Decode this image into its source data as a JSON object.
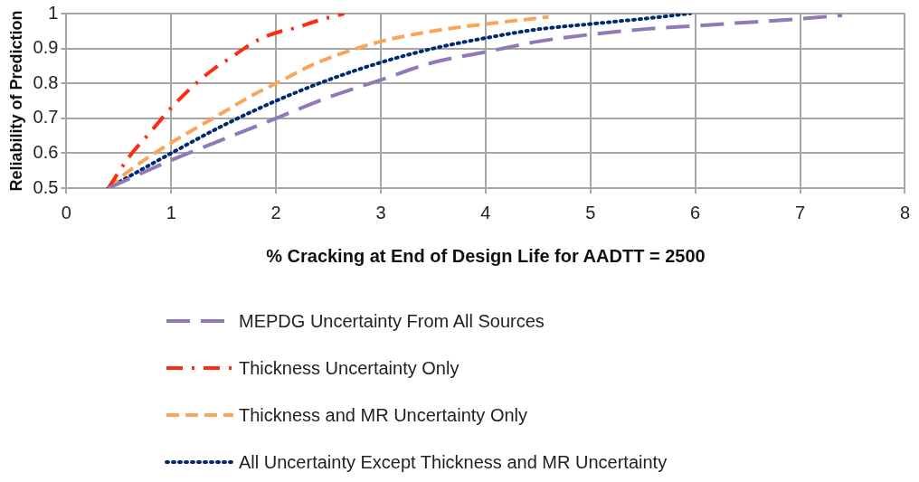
{
  "chart_data": {
    "type": "line",
    "xlabel": "% Cracking at End of Design Life for AADTT = 2500",
    "ylabel": "Reliability of Prediction",
    "xlim": [
      0,
      8
    ],
    "xticks": [
      0,
      1,
      2,
      3,
      4,
      5,
      6,
      7,
      8
    ],
    "ylim": [
      0.5,
      1
    ],
    "yticks": [
      0.5,
      0.6,
      0.7,
      0.8,
      0.9,
      1
    ],
    "grid": true,
    "legend": "bottom",
    "marker": "none",
    "series": [
      {
        "name": "MEPDG Uncertainty From All Sources",
        "color": "#8f79b8",
        "line_style": "dashed",
        "x": [
          0.4,
          1,
          1.5,
          2,
          2.5,
          3,
          3.5,
          4,
          4.5,
          5,
          5.5,
          6,
          6.5,
          7,
          7.4
        ],
        "values": [
          0.5,
          0.58,
          0.64,
          0.7,
          0.76,
          0.81,
          0.86,
          0.89,
          0.92,
          0.94,
          0.955,
          0.965,
          0.975,
          0.985,
          0.995
        ]
      },
      {
        "name": "Thickness Uncertainty Only",
        "color": "#ff2a10",
        "line_style": "dashed",
        "x": [
          0.4,
          0.6,
          0.8,
          1,
          1.2,
          1.4,
          1.6,
          1.8,
          2,
          2.2,
          2.4,
          2.65
        ],
        "values": [
          0.5,
          0.59,
          0.66,
          0.73,
          0.79,
          0.84,
          0.88,
          0.92,
          0.945,
          0.96,
          0.98,
          1
        ]
      },
      {
        "name": "Thickness and MR Uncertainty Only",
        "color": "#fba55a",
        "line_style": "dashed",
        "x": [
          0.4,
          0.6,
          1,
          1.4,
          1.8,
          2,
          2.4,
          3,
          3.5,
          4,
          4.6
        ],
        "values": [
          0.5,
          0.55,
          0.63,
          0.7,
          0.77,
          0.8,
          0.86,
          0.92,
          0.95,
          0.97,
          0.99
        ]
      },
      {
        "name": "All Uncertainty Except Thickness and MR Uncertainty",
        "color": "#002a70",
        "line_style": "dotted",
        "x": [
          0.4,
          1,
          1.5,
          2,
          2.5,
          3,
          3.5,
          4,
          4.5,
          5,
          5.5,
          5.95
        ],
        "values": [
          0.5,
          0.6,
          0.68,
          0.75,
          0.81,
          0.86,
          0.9,
          0.93,
          0.955,
          0.97,
          0.985,
          1
        ]
      }
    ]
  }
}
